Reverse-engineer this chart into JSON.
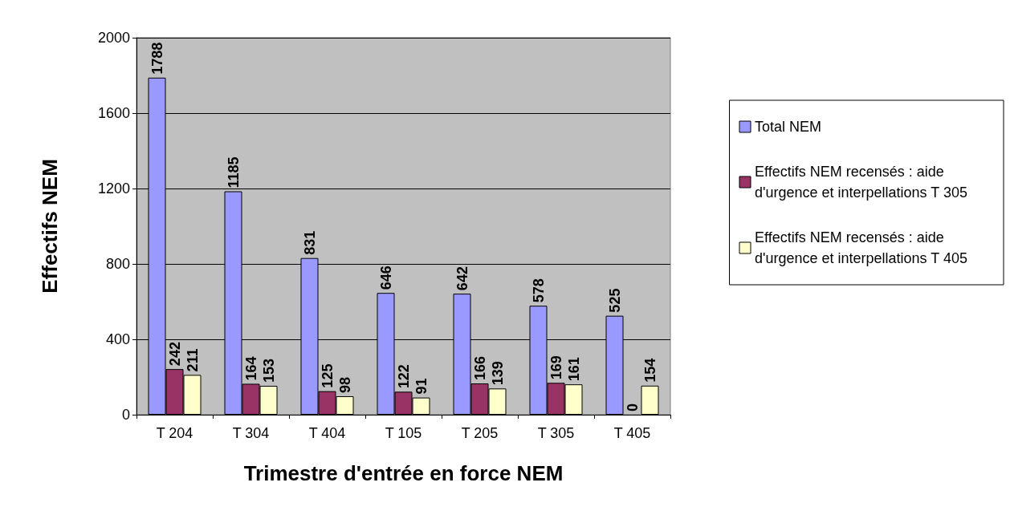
{
  "chart_data": {
    "type": "bar",
    "xlabel": "Trimestre d'entrée en force NEM",
    "ylabel": "Effectifs NEM",
    "categories": [
      "T 204",
      "T 304",
      "T 404",
      "T 105",
      "T 205",
      "T 305",
      "T 405"
    ],
    "series": [
      {
        "name": "Total NEM",
        "color": "#9999ff",
        "values": [
          1788,
          1185,
          831,
          646,
          642,
          578,
          525
        ]
      },
      {
        "name": "Effectifs NEM recensés : aide d'urgence et interpellations T 305",
        "color": "#993366",
        "values": [
          242,
          164,
          125,
          122,
          166,
          169,
          0
        ]
      },
      {
        "name": "Effectifs NEM recensés : aide d'urgence et interpellations T 405",
        "color": "#ffffcc",
        "values": [
          211,
          153,
          98,
          91,
          139,
          161,
          154
        ]
      }
    ],
    "ylim": [
      0,
      2000
    ],
    "yticks": [
      0,
      400,
      800,
      1200,
      1600,
      2000
    ],
    "grid": "y",
    "legend": "right",
    "data_labels": true
  }
}
